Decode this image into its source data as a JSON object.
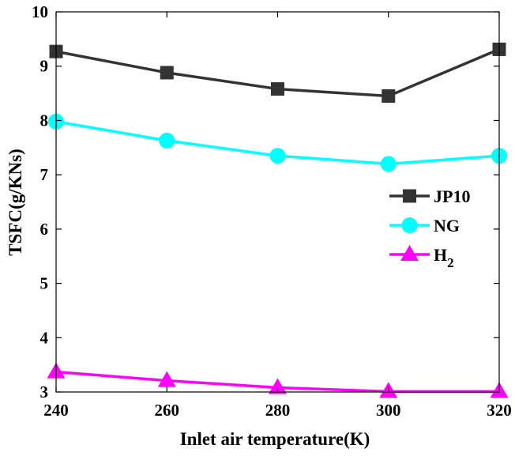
{
  "chart_data": {
    "type": "line",
    "xlabel": "Inlet air temperature(K)",
    "ylabel": "TSFC(g/KNs)",
    "x": [
      240,
      260,
      280,
      300,
      320
    ],
    "xlim": [
      240,
      320
    ],
    "ylim": [
      3,
      10
    ],
    "xticks": [
      "240",
      "260",
      "280",
      "300",
      "320"
    ],
    "yticks": [
      "3",
      "4",
      "5",
      "6",
      "7",
      "8",
      "9",
      "10"
    ],
    "grid": false,
    "legend_position": "right",
    "series": [
      {
        "name": "JP10",
        "name_sub": "",
        "marker": "square",
        "color": "#333333",
        "values": [
          9.27,
          8.88,
          8.58,
          8.45,
          9.31
        ]
      },
      {
        "name": "NG",
        "name_sub": "",
        "marker": "circle",
        "color": "#00ffff",
        "values": [
          7.98,
          7.63,
          7.35,
          7.2,
          7.35
        ]
      },
      {
        "name": "H",
        "name_sub": "2",
        "marker": "triangle",
        "color": "#ff00ff",
        "values": [
          3.37,
          3.21,
          3.08,
          3.01,
          3.01
        ]
      }
    ]
  }
}
